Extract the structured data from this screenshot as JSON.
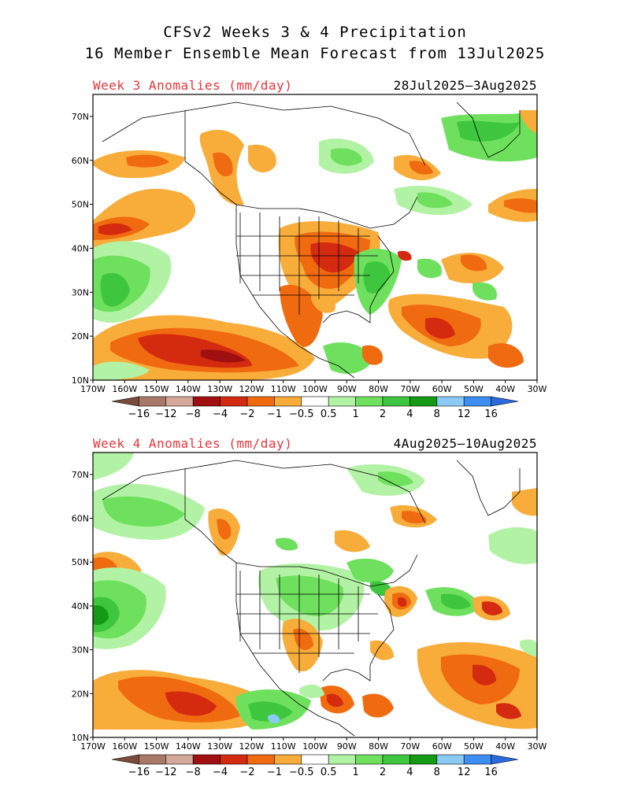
{
  "header": {
    "title_line1": "CFSv2 Weeks 3 & 4 Precipitation",
    "title_line2": "16 Member Ensemble Mean Forecast from 13Jul2025"
  },
  "panels": [
    {
      "label": "Week 3 Anomalies (mm/day)",
      "dates": "28Jul2025—3Aug2025"
    },
    {
      "label": "Week 4 Anomalies (mm/day)",
      "dates": "4Aug2025—10Aug2025"
    }
  ],
  "axes": {
    "lat_labels": [
      "70N",
      "60N",
      "50N",
      "40N",
      "30N",
      "20N",
      "10N"
    ],
    "lon_labels": [
      "170W",
      "160W",
      "150W",
      "140W",
      "130W",
      "120W",
      "110W",
      "100W",
      "90W",
      "80W",
      "70W",
      "60W",
      "50W",
      "40W",
      "30W"
    ]
  },
  "colorbar": {
    "tick_labels": [
      "−16",
      "−12",
      "−8",
      "−4",
      "−2",
      "−1",
      "−0.5",
      "0.5",
      "1",
      "2",
      "4",
      "8",
      "12",
      "16"
    ],
    "colors": [
      "#7a4a3a",
      "#a87868",
      "#d4a89a",
      "#a01010",
      "#d42a10",
      "#f06a10",
      "#f8ac3a",
      "#ffffff",
      "#b2f2a4",
      "#6ee05e",
      "#3ec63e",
      "#149a14",
      "#8ccaf6",
      "#3c8ef0",
      "#2a6ae0"
    ]
  }
}
